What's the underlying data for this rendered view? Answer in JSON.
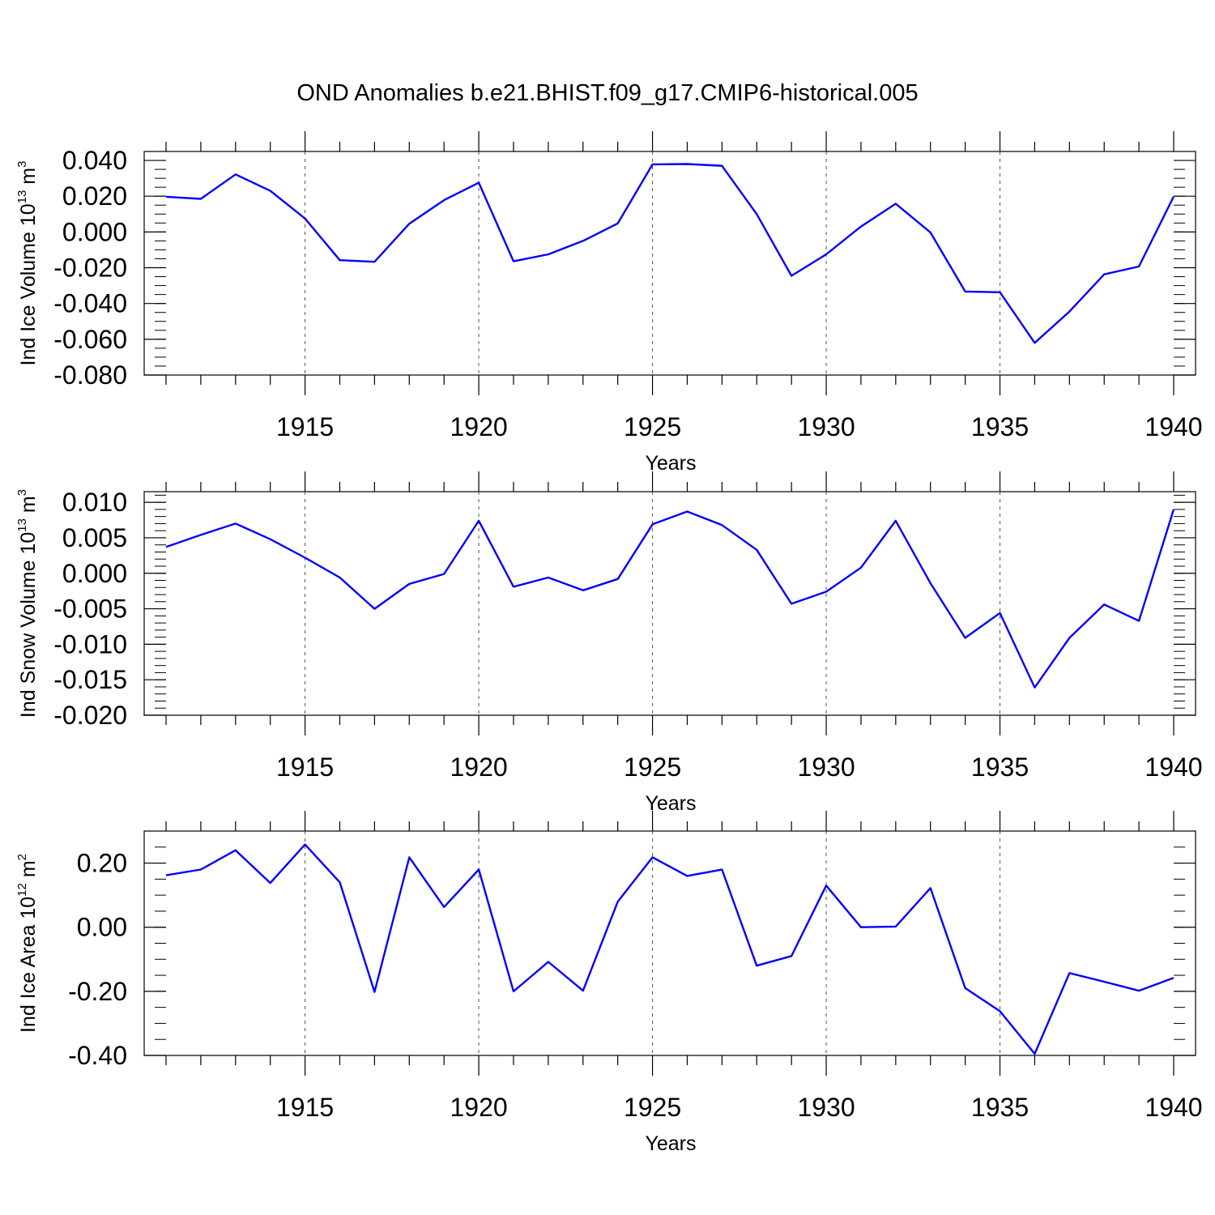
{
  "title": "OND Anomalies b.e21.BHIST.f09_g17.CMIP6-historical.005",
  "colors": {
    "line": "#0000ff",
    "axis": "#000000",
    "grid": "#555555"
  },
  "chart_data": [
    {
      "type": "line",
      "name": "ice-volume",
      "ylabel": {
        "text": "Ind Ice Volume 10",
        "exp": "13",
        "unit": "m",
        "unit_exp": "3"
      },
      "xlabel": "Years",
      "xlim": [
        1911,
        1940
      ],
      "ylim": [
        -0.08,
        0.045
      ],
      "xticks": [
        1915,
        1920,
        1925,
        1930,
        1935,
        1940
      ],
      "yticks": [
        0.04,
        0.02,
        0.0,
        -0.02,
        -0.04,
        -0.06,
        -0.08
      ],
      "ytick_labels": [
        "0.040",
        "0.020",
        "0.000",
        "-0.020",
        "-0.040",
        "-0.060",
        "-0.080"
      ],
      "yminor_step": 0.005,
      "grid": "dashed vertical at major x ticks",
      "x": [
        1911,
        1912,
        1913,
        1914,
        1915,
        1916,
        1917,
        1918,
        1919,
        1920,
        1921,
        1922,
        1923,
        1924,
        1925,
        1926,
        1927,
        1928,
        1929,
        1930,
        1931,
        1932,
        1933,
        1934,
        1935,
        1936,
        1937,
        1938,
        1939,
        1940
      ],
      "values": [
        0.0197,
        0.0185,
        0.0322,
        0.023,
        0.0075,
        -0.0158,
        -0.0167,
        0.0046,
        0.0178,
        0.0275,
        -0.0164,
        -0.0125,
        -0.005,
        0.0048,
        0.0378,
        0.038,
        0.037,
        0.01,
        -0.0245,
        -0.0125,
        0.003,
        0.0158,
        -0.0003,
        -0.0333,
        -0.0337,
        -0.062,
        -0.0445,
        -0.0237,
        -0.0193,
        0.0198
      ]
    },
    {
      "type": "line",
      "name": "snow-volume",
      "ylabel": {
        "text": "Ind Snow Volume 10",
        "exp": "13",
        "unit": "m",
        "unit_exp": "3"
      },
      "xlabel": "Years",
      "xlim": [
        1911,
        1940
      ],
      "ylim": [
        -0.02,
        0.0115
      ],
      "xticks": [
        1915,
        1920,
        1925,
        1930,
        1935,
        1940
      ],
      "yticks": [
        0.01,
        0.005,
        0.0,
        -0.005,
        -0.01,
        -0.015,
        -0.02
      ],
      "ytick_labels": [
        "0.010",
        "0.005",
        "0.000",
        "-0.005",
        "-0.010",
        "-0.015",
        "-0.020"
      ],
      "yminor_step": 0.001,
      "grid": "dashed vertical at major x ticks",
      "x": [
        1911,
        1912,
        1913,
        1914,
        1915,
        1916,
        1917,
        1918,
        1919,
        1920,
        1921,
        1922,
        1923,
        1924,
        1925,
        1926,
        1927,
        1928,
        1929,
        1930,
        1931,
        1932,
        1933,
        1934,
        1935,
        1936,
        1937,
        1938,
        1939,
        1940
      ],
      "values": [
        0.0037,
        0.0054,
        0.007,
        0.0048,
        0.0022,
        -0.0006,
        -0.005,
        -0.0015,
        -0.0001,
        0.0074,
        -0.0019,
        -0.0006,
        -0.0024,
        -0.0008,
        0.0069,
        0.0087,
        0.0068,
        0.0033,
        -0.0043,
        -0.0026,
        0.0008,
        0.0074,
        -0.0014,
        -0.0091,
        -0.0056,
        -0.0161,
        -0.0091,
        -0.0044,
        -0.0067,
        0.009
      ]
    },
    {
      "type": "line",
      "name": "ice-area",
      "ylabel": {
        "text": "Ind Ice Area 10",
        "exp": "12",
        "unit": "m",
        "unit_exp": "2"
      },
      "xlabel": "Years",
      "xlim": [
        1911,
        1940
      ],
      "ylim": [
        -0.4,
        0.3
      ],
      "xticks": [
        1915,
        1920,
        1925,
        1930,
        1935,
        1940
      ],
      "yticks": [
        0.2,
        0.0,
        -0.2,
        -0.4
      ],
      "ytick_labels": [
        "0.20",
        "0.00",
        "-0.20",
        "-0.40"
      ],
      "yminor_step": 0.05,
      "grid": "dashed vertical at major x ticks",
      "x": [
        1911,
        1912,
        1913,
        1914,
        1915,
        1916,
        1917,
        1918,
        1919,
        1920,
        1921,
        1922,
        1923,
        1924,
        1925,
        1926,
        1927,
        1928,
        1929,
        1930,
        1931,
        1932,
        1933,
        1934,
        1935,
        1936,
        1937,
        1938,
        1939,
        1940
      ],
      "values": [
        0.162,
        0.18,
        0.24,
        0.138,
        0.258,
        0.14,
        -0.202,
        0.218,
        0.063,
        0.18,
        -0.2,
        -0.108,
        -0.198,
        0.08,
        0.218,
        0.16,
        0.18,
        -0.12,
        -0.09,
        0.13,
        0.0,
        0.002,
        0.122,
        -0.19,
        -0.262,
        -0.395,
        -0.143,
        -0.17,
        -0.198,
        -0.158
      ]
    }
  ]
}
